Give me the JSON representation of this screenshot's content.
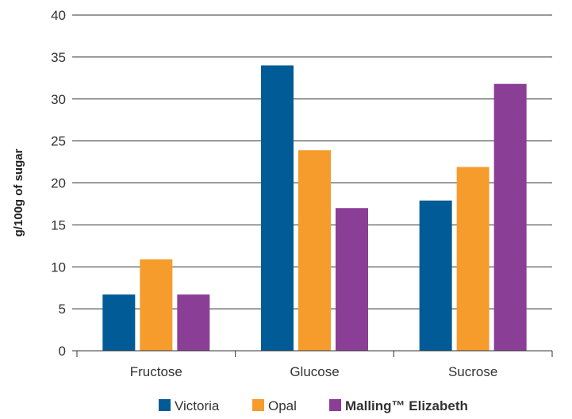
{
  "chart_data": {
    "type": "bar",
    "title": "",
    "xlabel": "",
    "ylabel": "g/100g of sugar",
    "categories": [
      "Fructose",
      "Glucose",
      "Sucrose"
    ],
    "yticks": [
      "0",
      "5",
      "10",
      "15",
      "20",
      "25",
      "30",
      "35",
      "40"
    ],
    "ylim": [
      0,
      40
    ],
    "grid": true,
    "legend_position": "bottom",
    "series": [
      {
        "name": "Victoria",
        "color": "#005b96",
        "bold": false,
        "values": [
          6.7,
          34.0,
          17.9
        ]
      },
      {
        "name": "Opal",
        "color": "#f59c2d",
        "bold": false,
        "values": [
          10.9,
          23.9,
          21.9
        ]
      },
      {
        "name": "Malling™ Elizabeth",
        "color": "#8b3e96",
        "bold": true,
        "values": [
          6.7,
          17.0,
          31.8
        ]
      }
    ]
  }
}
